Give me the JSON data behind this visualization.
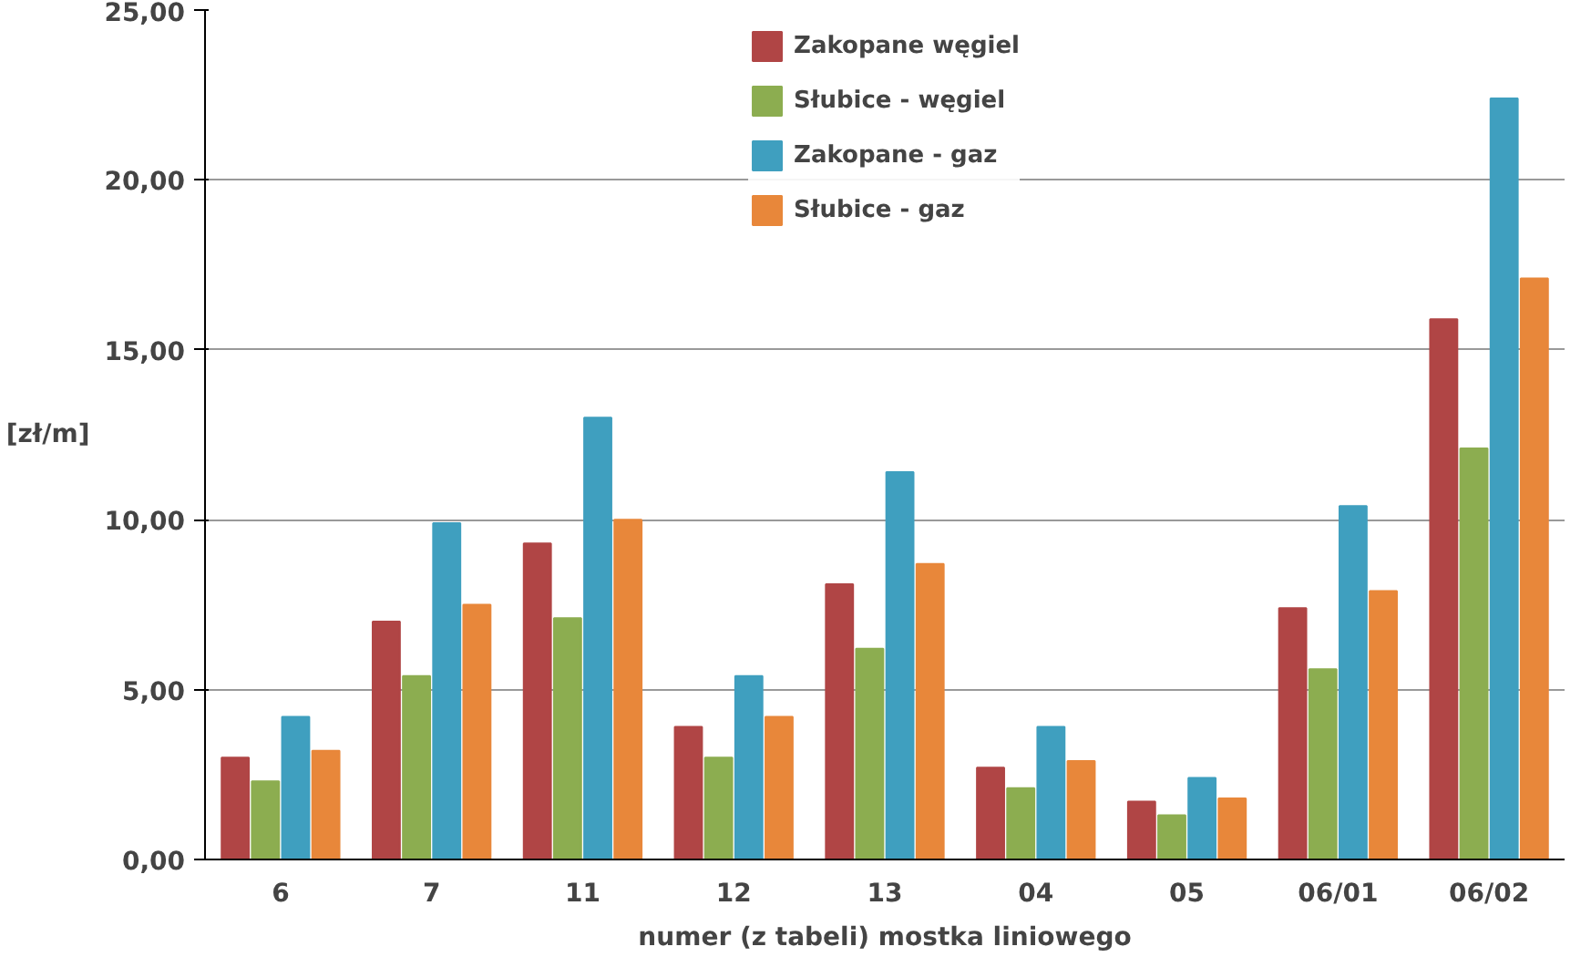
{
  "chart_data": {
    "type": "bar",
    "xlabel": "numer (z tabeli) mostka liniowego",
    "ylabel": "[zł/m]",
    "categories": [
      "6",
      "7",
      "11",
      "12",
      "13",
      "04",
      "05",
      "06/01",
      "06/02"
    ],
    "series": [
      {
        "name": "Zakopane węgiel",
        "color": "#b04545",
        "values": [
          3.0,
          7.0,
          9.3,
          3.9,
          8.1,
          2.7,
          1.7,
          7.4,
          15.9
        ]
      },
      {
        "name": "Słubice - węgiel",
        "color": "#8cad50",
        "values": [
          2.3,
          5.4,
          7.1,
          3.0,
          6.2,
          2.1,
          1.3,
          5.6,
          12.1
        ]
      },
      {
        "name": "Zakopane - gaz",
        "color": "#3f9fbf",
        "values": [
          4.2,
          9.9,
          13.0,
          5.4,
          11.4,
          3.9,
          2.4,
          10.4,
          22.4
        ]
      },
      {
        "name": "Słubice - gaz",
        "color": "#e8873a",
        "values": [
          3.2,
          7.5,
          10.0,
          4.2,
          8.7,
          2.9,
          1.8,
          7.9,
          17.1
        ]
      }
    ],
    "ylim": [
      0,
      25
    ],
    "yticks": [
      {
        "value": 0,
        "label": "0,00"
      },
      {
        "value": 5,
        "label": "5,00"
      },
      {
        "value": 10,
        "label": "10,00"
      },
      {
        "value": 15,
        "label": "15,00"
      },
      {
        "value": 20,
        "label": "20,00"
      },
      {
        "value": 25,
        "label": "25,00"
      }
    ],
    "grid": "y",
    "legend": "top"
  }
}
